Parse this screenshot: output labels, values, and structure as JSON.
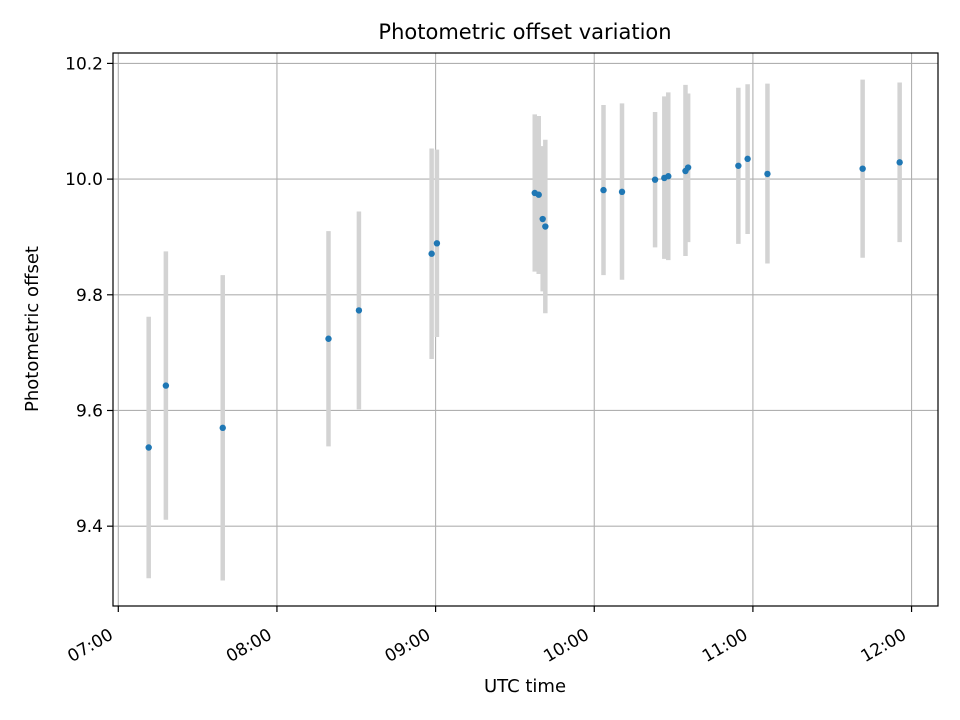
{
  "chart_data": {
    "type": "scatter",
    "title": "Photometric offset variation",
    "xlabel": "UTC time",
    "ylabel": "Photometric offset",
    "x_axis": {
      "kind": "time",
      "ticks": [
        "07:00",
        "08:00",
        "09:00",
        "10:00",
        "11:00",
        "12:00"
      ],
      "range": [
        "06:58",
        "12:10"
      ]
    },
    "y_axis": {
      "ticks": [
        9.4,
        9.6,
        9.8,
        10.0,
        10.2
      ],
      "range": [
        9.262,
        10.218
      ]
    },
    "grid": true,
    "colors": {
      "point": "#1f77b4",
      "errorbar": "#d3d3d3",
      "grid": "#b0b0b0"
    },
    "series": [
      {
        "points": [
          {
            "x": "07:11:30",
            "y": 9.536,
            "low": 9.31,
            "high": 9.762
          },
          {
            "x": "07:18:00",
            "y": 9.643,
            "low": 9.411,
            "high": 9.875
          },
          {
            "x": "07:39:30",
            "y": 9.57,
            "low": 9.306,
            "high": 9.834
          },
          {
            "x": "08:19:30",
            "y": 9.724,
            "low": 9.538,
            "high": 9.91
          },
          {
            "x": "08:31:00",
            "y": 9.773,
            "low": 9.602,
            "high": 9.944
          },
          {
            "x": "08:58:30",
            "y": 9.871,
            "low": 9.689,
            "high": 10.053
          },
          {
            "x": "09:00:30",
            "y": 9.889,
            "low": 9.727,
            "high": 10.051
          },
          {
            "x": "09:37:30",
            "y": 9.976,
            "low": 9.84,
            "high": 10.112
          },
          {
            "x": "09:39:00",
            "y": 9.973,
            "low": 9.836,
            "high": 10.109
          },
          {
            "x": "09:40:30",
            "y": 9.931,
            "low": 9.806,
            "high": 10.057
          },
          {
            "x": "09:41:30",
            "y": 9.918,
            "low": 9.768,
            "high": 10.068
          },
          {
            "x": "10:03:30",
            "y": 9.981,
            "low": 9.834,
            "high": 10.128
          },
          {
            "x": "10:10:30",
            "y": 9.978,
            "low": 9.826,
            "high": 10.131
          },
          {
            "x": "10:23:00",
            "y": 9.999,
            "low": 9.882,
            "high": 10.116
          },
          {
            "x": "10:26:30",
            "y": 10.002,
            "low": 9.862,
            "high": 10.143
          },
          {
            "x": "10:28:00",
            "y": 10.005,
            "low": 9.86,
            "high": 10.15
          },
          {
            "x": "10:34:30",
            "y": 10.014,
            "low": 9.867,
            "high": 10.163
          },
          {
            "x": "10:35:30",
            "y": 10.02,
            "low": 9.891,
            "high": 10.148
          },
          {
            "x": "10:54:30",
            "y": 10.023,
            "low": 9.888,
            "high": 10.158
          },
          {
            "x": "10:58:00",
            "y": 10.035,
            "low": 9.905,
            "high": 10.164
          },
          {
            "x": "11:05:30",
            "y": 10.009,
            "low": 9.854,
            "high": 10.165
          },
          {
            "x": "11:41:30",
            "y": 10.018,
            "low": 9.864,
            "high": 10.172
          },
          {
            "x": "11:55:30",
            "y": 10.029,
            "low": 9.891,
            "high": 10.167
          }
        ]
      }
    ]
  }
}
